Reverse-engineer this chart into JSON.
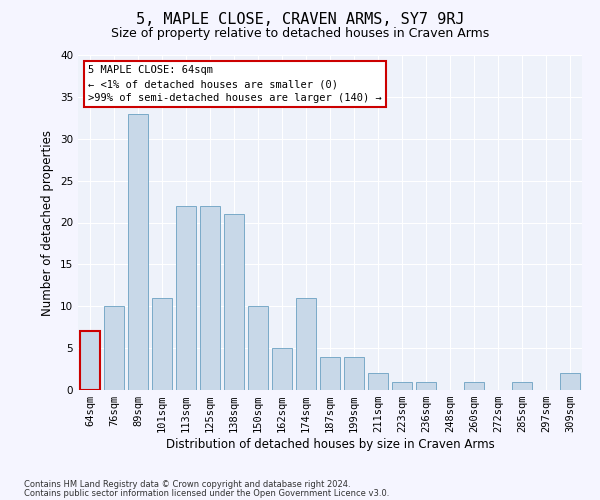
{
  "title": "5, MAPLE CLOSE, CRAVEN ARMS, SY7 9RJ",
  "subtitle": "Size of property relative to detached houses in Craven Arms",
  "xlabel": "Distribution of detached houses by size in Craven Arms",
  "ylabel": "Number of detached properties",
  "categories": [
    "64sqm",
    "76sqm",
    "89sqm",
    "101sqm",
    "113sqm",
    "125sqm",
    "138sqm",
    "150sqm",
    "162sqm",
    "174sqm",
    "187sqm",
    "199sqm",
    "211sqm",
    "223sqm",
    "236sqm",
    "248sqm",
    "260sqm",
    "272sqm",
    "285sqm",
    "297sqm",
    "309sqm"
  ],
  "values": [
    7,
    10,
    33,
    11,
    22,
    22,
    21,
    10,
    5,
    11,
    4,
    4,
    2,
    1,
    1,
    0,
    1,
    0,
    1,
    0,
    2
  ],
  "bar_color": "#c8d8e8",
  "bar_edge_color": "#7aaac8",
  "highlight_edge_color": "#cc0000",
  "highlight_index": 0,
  "annotation_box_text": "5 MAPLE CLOSE: 64sqm\n← <1% of detached houses are smaller (0)\n>99% of semi-detached houses are larger (140) →",
  "annotation_box_color": "#ffffff",
  "annotation_box_edge_color": "#cc0000",
  "footer_line1": "Contains HM Land Registry data © Crown copyright and database right 2024.",
  "footer_line2": "Contains public sector information licensed under the Open Government Licence v3.0.",
  "ylim": [
    0,
    40
  ],
  "yticks": [
    0,
    5,
    10,
    15,
    20,
    25,
    30,
    35,
    40
  ],
  "bg_color": "#eef2fa",
  "grid_color": "#ffffff",
  "fig_bg_color": "#f5f5ff",
  "title_fontsize": 11,
  "subtitle_fontsize": 9,
  "axis_label_fontsize": 8.5,
  "tick_fontsize": 7.5,
  "annotation_fontsize": 7.5,
  "footer_fontsize": 6
}
